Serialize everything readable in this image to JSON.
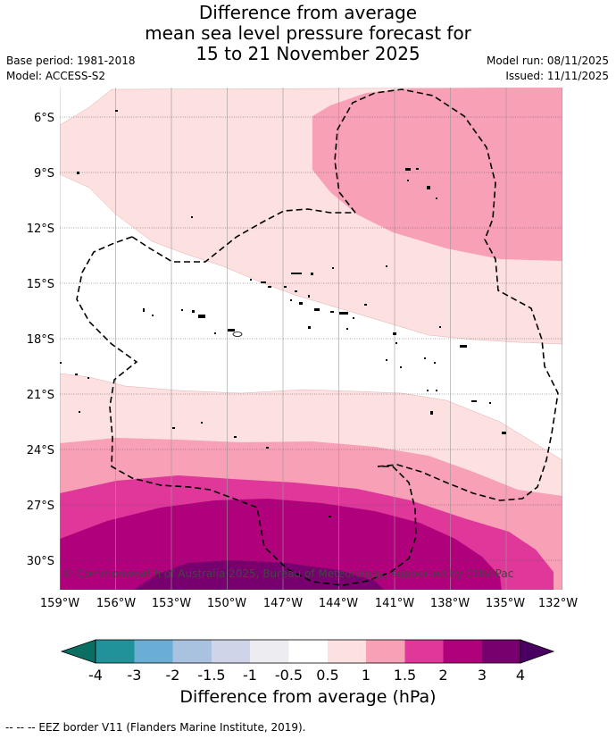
{
  "title": {
    "line1": "Difference from average",
    "line2": "mean sea level pressure forecast for",
    "line3": "15 to 21 November 2025"
  },
  "meta": {
    "base_period": "Base period: 1981-2018",
    "model": "Model: ACCESS-S2",
    "model_run": "Model run: 08/11/2025",
    "issued": "Issued: 11/11/2025"
  },
  "map": {
    "lat_labels": [
      "6°S",
      "9°S",
      "12°S",
      "15°S",
      "18°S",
      "21°S",
      "24°S",
      "27°S",
      "30°S"
    ],
    "lon_labels": [
      "159°W",
      "156°W",
      "153°W",
      "150°W",
      "147°W",
      "144°W",
      "141°W",
      "138°W",
      "135°W",
      "132°W"
    ],
    "copyright": "© Commonwealth of Australia 2025, Bureau of Meteorology, supported by COSPPac"
  },
  "colorbar": {
    "title": "Difference from average (hPa)",
    "tick_labels": [
      "-4",
      "-3",
      "-2",
      "-1.5",
      "-1",
      "-0.5",
      "0.5",
      "1",
      "1.5",
      "2",
      "3",
      "4"
    ],
    "colors": {
      "lt_-4": "#0b6e63",
      "-4_-3": "#21929a",
      "-3_-2": "#6aaed6",
      "-2_-1.5": "#a9c2e0",
      "-1.5_-1": "#d0d4e8",
      "-1_-0.5": "#ececf1",
      "-0.5_0.5": "#ffffff",
      "0.5_1": "#fde0e0",
      "1_1.5": "#f8a0b6",
      "1.5_2": "#e0379b",
      "2_3": "#b0007c",
      "3_4": "#78006e",
      "gt_4": "#4a0060"
    }
  },
  "footnote": "--  --  -- EEZ border V11 (Flanders Marine Institute, 2019)."
}
